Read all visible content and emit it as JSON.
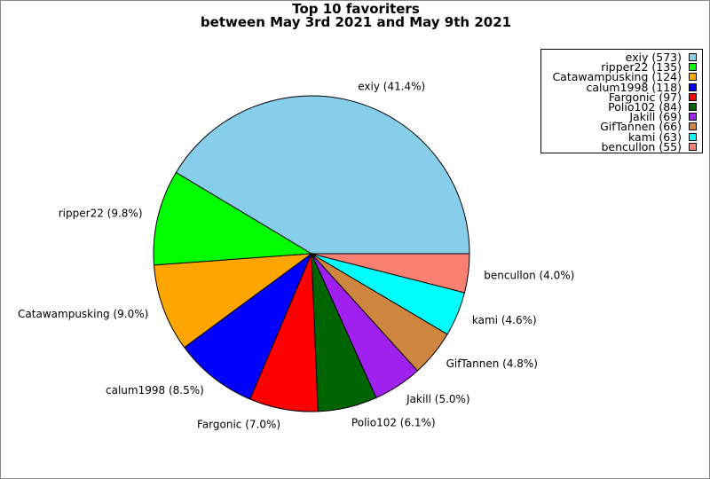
{
  "chart_data": {
    "type": "pie",
    "title": [
      "Top 10 favoriters",
      "between May 3rd 2021 and May 9th 2021"
    ],
    "start_angle_deg": 0,
    "direction": "counterclockwise",
    "legend_position": "top-right",
    "slices": [
      {
        "name": "exiy",
        "value": 573,
        "percent": "41.4%",
        "color": "#87ceeb",
        "legend": "exiy (573)",
        "label": "exiy (41.4%)"
      },
      {
        "name": "ripper22",
        "value": 135,
        "percent": "9.8%",
        "color": "#00ff00",
        "legend": "ripper22 (135)",
        "label": "ripper22 (9.8%)"
      },
      {
        "name": "Catawampusking",
        "value": 124,
        "percent": "9.0%",
        "color": "#ffa500",
        "legend": "Catawampusking (124)",
        "label": "Catawampusking (9.0%)"
      },
      {
        "name": "calum1998",
        "value": 118,
        "percent": "8.5%",
        "color": "#0000ff",
        "legend": "calum1998 (118)",
        "label": "calum1998 (8.5%)"
      },
      {
        "name": "Fargonic",
        "value": 97,
        "percent": "7.0%",
        "color": "#ff0000",
        "legend": "Fargonic (97)",
        "label": "Fargonic (7.0%)"
      },
      {
        "name": "Polio102",
        "value": 84,
        "percent": "6.1%",
        "color": "#006400",
        "legend": "Polio102 (84)",
        "label": "Polio102 (6.1%)"
      },
      {
        "name": "Jakill",
        "value": 69,
        "percent": "5.0%",
        "color": "#a020f0",
        "legend": "Jakill (69)",
        "label": "Jakill (5.0%)"
      },
      {
        "name": "GifTannen",
        "value": 66,
        "percent": "4.8%",
        "color": "#cd853f",
        "legend": "GifTannen (66)",
        "label": "GifTannen (4.8%)"
      },
      {
        "name": "kami",
        "value": 63,
        "percent": "4.6%",
        "color": "#00ffff",
        "legend": "kami (63)",
        "label": "kami (4.6%)"
      },
      {
        "name": "bencullon",
        "value": 55,
        "percent": "4.0%",
        "color": "#fa8072",
        "legend": "bencullon (55)",
        "label": "bencullon (4.0%)"
      }
    ]
  }
}
